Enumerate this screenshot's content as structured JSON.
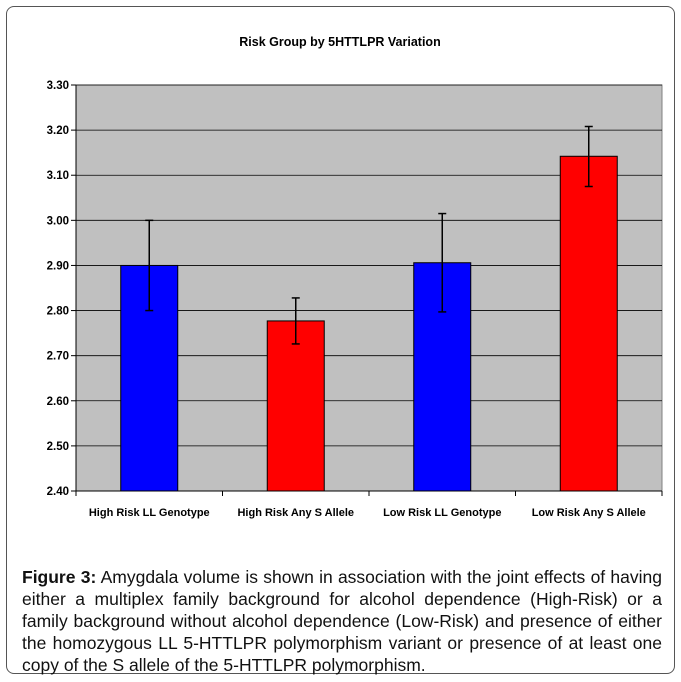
{
  "chart_data": {
    "type": "bar",
    "title": "Risk Group by 5HTTLPR Variation",
    "xlabel": "",
    "ylabel": "",
    "categories": [
      "High Risk LL Genotype",
      "High Risk Any S Allele",
      "Low Risk LL Genotype",
      "Low Risk Any S Allele"
    ],
    "values": [
      2.9,
      2.777,
      2.906,
      3.142
    ],
    "error_high": [
      3.0,
      2.828,
      3.015,
      3.208
    ],
    "error_low": [
      2.8,
      2.726,
      2.797,
      3.075
    ],
    "bar_colors": [
      "#0000ff",
      "#ff0000",
      "#0000ff",
      "#ff0000"
    ],
    "ylim": [
      2.4,
      3.3
    ],
    "yticks": [
      "2.40",
      "2.50",
      "2.60",
      "2.70",
      "2.80",
      "2.90",
      "3.00",
      "3.10",
      "3.20",
      "3.30"
    ],
    "grid": true,
    "legend": "none",
    "plot_background": "#c0c0c0"
  },
  "caption": {
    "label": "Figure 3:",
    "text": " Amygdala volume is shown in association with the joint effects of having either a multiplex family background for alcohol dependence (High-Risk) or a family background without alcohol dependence (Low-Risk) and presence of either the homozygous LL 5-HTTLPR polymorphism variant or presence of at least one copy of the S allele of the 5-HTTLPR polymorphism."
  }
}
